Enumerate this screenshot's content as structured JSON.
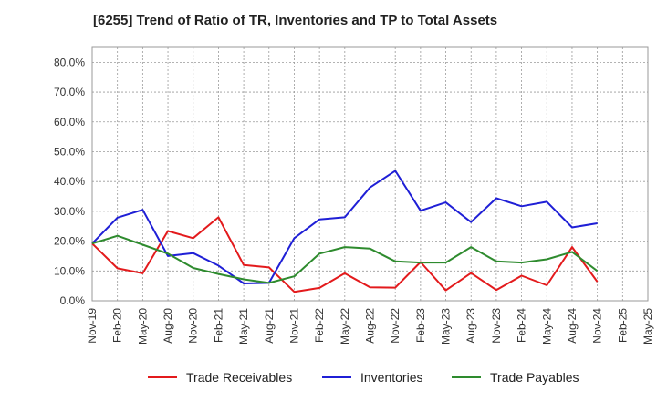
{
  "chart_data": {
    "type": "line",
    "title": "[6255]  Trend of Ratio of TR, Inventories and TP to Total Assets",
    "xlabel": "",
    "ylabel": "",
    "ylim": [
      0,
      85
    ],
    "yticks": [
      0,
      10,
      20,
      30,
      40,
      50,
      60,
      70,
      80
    ],
    "ytick_labels": [
      "0.0%",
      "10.0%",
      "20.0%",
      "30.0%",
      "40.0%",
      "50.0%",
      "60.0%",
      "70.0%",
      "80.0%"
    ],
    "grid": true,
    "legend_position": "bottom",
    "x": [
      "Nov-19",
      "Feb-20",
      "May-20",
      "Aug-20",
      "Nov-20",
      "Feb-21",
      "May-21",
      "Aug-21",
      "Nov-21",
      "Feb-22",
      "May-22",
      "Aug-22",
      "Nov-22",
      "Feb-23",
      "May-23",
      "Aug-23",
      "Nov-23",
      "Feb-24",
      "May-24",
      "Aug-24",
      "Nov-24",
      "Feb-25",
      "May-25"
    ],
    "series": [
      {
        "name": "Trade Receivables",
        "color": "#e31a1c",
        "values": [
          19.2,
          10.9,
          9.2,
          23.4,
          21.0,
          28.0,
          12.0,
          11.2,
          3.0,
          4.3,
          9.2,
          4.5,
          4.4,
          13.0,
          3.5,
          9.3,
          3.6,
          8.4,
          5.2,
          18.0,
          6.4,
          null,
          null
        ]
      },
      {
        "name": "Inventories",
        "color": "#1f1fd6",
        "values": [
          19.2,
          27.9,
          30.5,
          15.0,
          16.0,
          11.8,
          5.8,
          6.0,
          21.0,
          27.3,
          28.0,
          38.0,
          43.6,
          30.2,
          33.0,
          26.4,
          34.4,
          31.7,
          33.2,
          24.6,
          26.0,
          null,
          null
        ]
      },
      {
        "name": "Trade Payables",
        "color": "#2e8b2e",
        "values": [
          19.2,
          21.8,
          18.8,
          15.8,
          11.0,
          9.0,
          7.2,
          6.0,
          8.2,
          15.8,
          18.0,
          17.5,
          13.2,
          12.8,
          12.8,
          18.0,
          13.2,
          12.8,
          13.9,
          16.4,
          10.0,
          null,
          null
        ]
      }
    ]
  }
}
